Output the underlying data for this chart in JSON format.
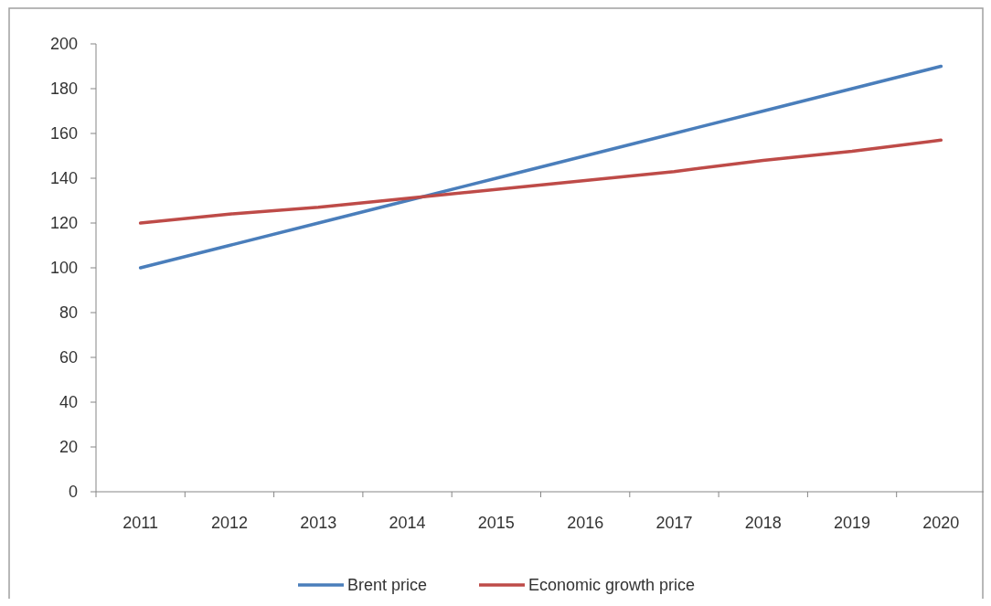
{
  "chart_data": {
    "type": "line",
    "categories": [
      "2011",
      "2012",
      "2013",
      "2014",
      "2015",
      "2016",
      "2017",
      "2018",
      "2019",
      "2020"
    ],
    "series": [
      {
        "name": "Brent price",
        "color": "#4a7ebb",
        "values": [
          100,
          110,
          120,
          130,
          140,
          150,
          160,
          170,
          180,
          190
        ]
      },
      {
        "name": "Economic growth price",
        "color": "#be4b48",
        "values": [
          120,
          124,
          127,
          131,
          135,
          139,
          143,
          148,
          152,
          157
        ]
      }
    ],
    "ylim": [
      0,
      200
    ],
    "yticks": [
      0,
      20,
      40,
      60,
      80,
      100,
      120,
      140,
      160,
      180,
      200
    ],
    "grid": false,
    "legend": "bottom",
    "marker": "none",
    "line_style": "solid"
  }
}
